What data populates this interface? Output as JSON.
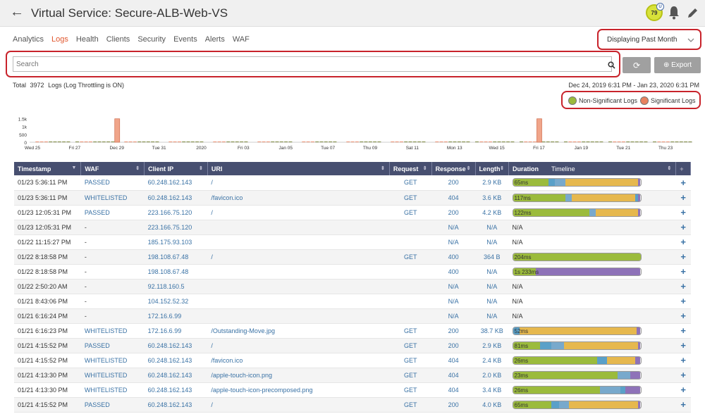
{
  "header": {
    "title_prefix": "Virtual Service:",
    "title_name": "Secure-ALB-Web-VS",
    "health_score": "79",
    "health_badge": "U"
  },
  "nav": {
    "tabs": [
      "Analytics",
      "Logs",
      "Health",
      "Clients",
      "Security",
      "Events",
      "Alerts",
      "WAF"
    ],
    "active": "Logs"
  },
  "range_select": {
    "value": "Displaying Past Month"
  },
  "search": {
    "placeholder": "Search"
  },
  "toolbar": {
    "refresh_label": "⟳",
    "export_label": "⊕ Export"
  },
  "summary": {
    "total_label": "Total",
    "total_count": "3972",
    "logs_label": "Logs (Log Throttling is ON)",
    "date_range": "Dec 24, 2019 6:31 PM - Jan 23, 2020 6:31 PM"
  },
  "legend": {
    "non_significant": "Non-Significant Logs",
    "significant": "Significant Logs",
    "non_significant_color": "#9bbb3c",
    "significant_color": "#e8825f"
  },
  "chart_data": {
    "type": "bar",
    "ytick_labels": [
      "1.5k",
      "1k",
      "500",
      "0"
    ],
    "ylim": [
      0,
      1600
    ],
    "xtick_labels": [
      "Wed 25",
      "Fri 27",
      "Dec 29",
      "Tue 31",
      "2020",
      "Fri 03",
      "Jan 05",
      "Tue 07",
      "Thu 09",
      "Sat 11",
      "Mon 13",
      "Wed 15",
      "Fri 17",
      "Jan 19",
      "Tue 21",
      "Thu 23"
    ],
    "spikes": [
      {
        "at": "Dec 29",
        "value": 1480
      },
      {
        "at": "Fri 17",
        "value": 1480
      }
    ],
    "baseline_value": 40
  },
  "table": {
    "columns": [
      "Timestamp",
      "WAF",
      "Client IP",
      "URI",
      "Request",
      "Response",
      "Length",
      "Duration",
      "Timeline"
    ],
    "rows": [
      {
        "ts": "01/23 5:36:11 PM",
        "waf": "PASSED",
        "ip": "60.248.162.143",
        "uri": "/",
        "req": "GET",
        "resp": "200",
        "len": "2.9 KB",
        "dur": "65ms",
        "segs": [
          [
            "#9bbb3c",
            28
          ],
          [
            "#5aa0c8",
            5
          ],
          [
            "#78a9cc",
            8
          ],
          [
            "#e6b84e",
            57
          ],
          [
            "#8e72b8",
            2
          ]
        ]
      },
      {
        "ts": "01/23 5:36:11 PM",
        "waf": "WHITELISTED",
        "ip": "60.248.162.143",
        "uri": "/favicon.ico",
        "req": "GET",
        "resp": "404",
        "len": "3.6 KB",
        "dur": "117ms",
        "segs": [
          [
            "#9bbb3c",
            41
          ],
          [
            "#78a9cc",
            5
          ],
          [
            "#e6b84e",
            50
          ],
          [
            "#5aa0c8",
            2
          ],
          [
            "#8e72b8",
            2
          ]
        ]
      },
      {
        "ts": "01/23 12:05:31 PM",
        "waf": "PASSED",
        "ip": "223.166.75.120",
        "uri": "/",
        "req": "GET",
        "resp": "200",
        "len": "4.2 KB",
        "dur": "122ms",
        "segs": [
          [
            "#9bbb3c",
            60
          ],
          [
            "#78a9cc",
            5
          ],
          [
            "#e6b84e",
            33
          ],
          [
            "#8e72b8",
            2
          ]
        ]
      },
      {
        "ts": "01/23 12:05:31 PM",
        "waf": "-",
        "ip": "223.166.75.120",
        "uri": "",
        "req": "",
        "resp": "N/A",
        "len": "N/A",
        "dur": "N/A",
        "segs": []
      },
      {
        "ts": "01/22 11:15:27 PM",
        "waf": "-",
        "ip": "185.175.93.103",
        "uri": "",
        "req": "",
        "resp": "N/A",
        "len": "N/A",
        "dur": "N/A",
        "segs": []
      },
      {
        "ts": "01/22 8:18:58 PM",
        "waf": "-",
        "ip": "198.108.67.48",
        "uri": "/",
        "req": "GET",
        "resp": "400",
        "len": "364 B",
        "dur": "204ms",
        "segs": [
          [
            "#9bbb3c",
            100
          ]
        ]
      },
      {
        "ts": "01/22 8:18:58 PM",
        "waf": "-",
        "ip": "198.108.67.48",
        "uri": "",
        "req": "",
        "resp": "400",
        "len": "N/A",
        "dur": "1s 233ms",
        "segs": [
          [
            "#9bbb3c",
            18
          ],
          [
            "#8e72b8",
            82
          ]
        ]
      },
      {
        "ts": "01/22 2:50:20 AM",
        "waf": "-",
        "ip": "92.118.160.5",
        "uri": "",
        "req": "",
        "resp": "N/A",
        "len": "N/A",
        "dur": "N/A",
        "segs": []
      },
      {
        "ts": "01/21 8:43:06 PM",
        "waf": "-",
        "ip": "104.152.52.32",
        "uri": "",
        "req": "",
        "resp": "N/A",
        "len": "N/A",
        "dur": "N/A",
        "segs": []
      },
      {
        "ts": "01/21 6:16:24 PM",
        "waf": "-",
        "ip": "172.16.6.99",
        "uri": "",
        "req": "",
        "resp": "N/A",
        "len": "N/A",
        "dur": "N/A",
        "segs": []
      },
      {
        "ts": "01/21 6:16:23 PM",
        "waf": "WHITELISTED",
        "ip": "172.16.6.99",
        "uri": "/Outstanding-Move.jpg",
        "req": "GET",
        "resp": "200",
        "len": "38.7 KB",
        "dur": "52ms",
        "segs": [
          [
            "#5aa0c8",
            5
          ],
          [
            "#e6b84e",
            92
          ],
          [
            "#8e72b8",
            3
          ]
        ]
      },
      {
        "ts": "01/21 4:15:52 PM",
        "waf": "PASSED",
        "ip": "60.248.162.143",
        "uri": "/",
        "req": "GET",
        "resp": "200",
        "len": "2.9 KB",
        "dur": "81ms",
        "segs": [
          [
            "#9bbb3c",
            21
          ],
          [
            "#5aa0c8",
            9
          ],
          [
            "#78a9cc",
            10
          ],
          [
            "#e6b84e",
            58
          ],
          [
            "#8e72b8",
            2
          ]
        ]
      },
      {
        "ts": "01/21 4:15:52 PM",
        "waf": "WHITELISTED",
        "ip": "60.248.162.143",
        "uri": "/favicon.ico",
        "req": "GET",
        "resp": "404",
        "len": "2.4 KB",
        "dur": "26ms",
        "segs": [
          [
            "#9bbb3c",
            66
          ],
          [
            "#5aa0c8",
            8
          ],
          [
            "#e6b84e",
            22
          ],
          [
            "#8e72b8",
            4
          ]
        ]
      },
      {
        "ts": "01/21 4:13:30 PM",
        "waf": "WHITELISTED",
        "ip": "60.248.162.143",
        "uri": "/apple-touch-icon.png",
        "req": "GET",
        "resp": "404",
        "len": "2.0 KB",
        "dur": "23ms",
        "segs": [
          [
            "#9bbb3c",
            82
          ],
          [
            "#78a9cc",
            10
          ],
          [
            "#8e72b8",
            8
          ]
        ]
      },
      {
        "ts": "01/21 4:13:30 PM",
        "waf": "WHITELISTED",
        "ip": "60.248.162.143",
        "uri": "/apple-touch-icon-precomposed.png",
        "req": "GET",
        "resp": "404",
        "len": "3.4 KB",
        "dur": "26ms",
        "segs": [
          [
            "#9bbb3c",
            68
          ],
          [
            "#78a9cc",
            16
          ],
          [
            "#5aa0c8",
            4
          ],
          [
            "#8e72b8",
            12
          ]
        ]
      },
      {
        "ts": "01/21 4:15:52 PM",
        "waf": "PASSED",
        "ip": "60.248.162.143",
        "uri": "/",
        "req": "GET",
        "resp": "200",
        "len": "4.0 KB",
        "dur": "65ms",
        "segs": [
          [
            "#9bbb3c",
            30
          ],
          [
            "#5aa0c8",
            6
          ],
          [
            "#78a9cc",
            8
          ],
          [
            "#e6b84e",
            54
          ],
          [
            "#8e72b8",
            2
          ]
        ]
      }
    ]
  }
}
